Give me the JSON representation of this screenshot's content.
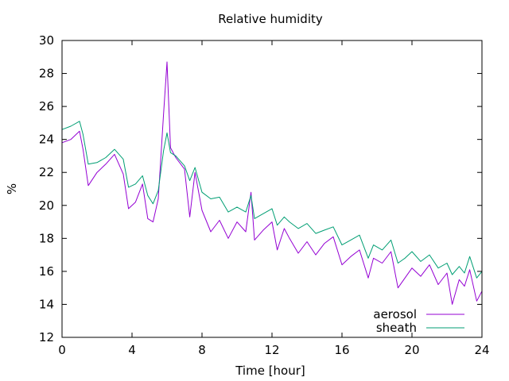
{
  "chart_data": {
    "type": "line",
    "title": "Relative humidity",
    "xlabel": "Time [hour]",
    "ylabel": "%",
    "xlim": [
      0,
      24
    ],
    "ylim": [
      12,
      30
    ],
    "xticks": [
      0,
      4,
      8,
      12,
      16,
      20,
      24
    ],
    "yticks": [
      12,
      14,
      16,
      18,
      20,
      22,
      24,
      26,
      28,
      30
    ],
    "grid": false,
    "legend_position": "bottom-right",
    "series": [
      {
        "name": "aerosol",
        "color": "#9400d3",
        "x": [
          0,
          0.5,
          1.0,
          1.2,
          1.5,
          2.0,
          2.5,
          3.0,
          3.5,
          3.8,
          4.2,
          4.6,
          4.9,
          5.2,
          5.5,
          5.8,
          6.0,
          6.2,
          6.5,
          7.0,
          7.3,
          7.6,
          8.0,
          8.5,
          9.0,
          9.5,
          10.0,
          10.5,
          10.8,
          11.0,
          11.5,
          12.0,
          12.3,
          12.7,
          13.0,
          13.5,
          14.0,
          14.5,
          15.0,
          15.5,
          16.0,
          16.5,
          17.0,
          17.5,
          17.8,
          18.3,
          18.8,
          19.2,
          19.6,
          20.0,
          20.5,
          21.0,
          21.5,
          22.0,
          22.3,
          22.7,
          23.0,
          23.3,
          23.7,
          24.0
        ],
        "y": [
          23.8,
          24.0,
          24.5,
          23.4,
          21.2,
          22.0,
          22.5,
          23.1,
          21.9,
          19.8,
          20.2,
          21.3,
          19.2,
          19.0,
          20.4,
          25.5,
          28.7,
          23.5,
          22.9,
          22.2,
          19.3,
          22.0,
          19.7,
          18.4,
          19.1,
          18.0,
          19.0,
          18.4,
          20.8,
          17.9,
          18.5,
          19.0,
          17.3,
          18.6,
          18.0,
          17.1,
          17.8,
          17.0,
          17.7,
          18.1,
          16.4,
          16.9,
          17.3,
          15.6,
          16.8,
          16.5,
          17.2,
          15.0,
          15.6,
          16.2,
          15.7,
          16.4,
          15.2,
          15.9,
          14.0,
          15.5,
          15.1,
          16.1,
          14.2,
          14.8
        ]
      },
      {
        "name": "sheath",
        "color": "#009e73",
        "x": [
          0,
          0.5,
          1.0,
          1.2,
          1.5,
          2.0,
          2.5,
          3.0,
          3.5,
          3.8,
          4.2,
          4.6,
          4.9,
          5.2,
          5.5,
          5.8,
          6.0,
          6.2,
          6.5,
          7.0,
          7.3,
          7.6,
          8.0,
          8.5,
          9.0,
          9.5,
          10.0,
          10.5,
          10.8,
          11.0,
          11.5,
          12.0,
          12.3,
          12.7,
          13.0,
          13.5,
          14.0,
          14.5,
          15.0,
          15.5,
          16.0,
          16.5,
          17.0,
          17.5,
          17.8,
          18.3,
          18.8,
          19.2,
          19.6,
          20.0,
          20.5,
          21.0,
          21.5,
          22.0,
          22.3,
          22.7,
          23.0,
          23.3,
          23.7,
          24.0
        ],
        "y": [
          24.6,
          24.8,
          25.1,
          24.3,
          22.5,
          22.6,
          22.9,
          23.4,
          22.8,
          21.1,
          21.3,
          21.8,
          20.6,
          20.1,
          20.9,
          23.3,
          24.4,
          23.2,
          23.0,
          22.4,
          21.5,
          22.3,
          20.8,
          20.4,
          20.5,
          19.6,
          19.9,
          19.6,
          20.6,
          19.2,
          19.5,
          19.8,
          18.8,
          19.3,
          19.0,
          18.6,
          18.9,
          18.3,
          18.5,
          18.7,
          17.6,
          17.9,
          18.2,
          16.8,
          17.6,
          17.3,
          17.9,
          16.5,
          16.8,
          17.2,
          16.6,
          17.0,
          16.2,
          16.5,
          15.8,
          16.3,
          15.9,
          16.9,
          15.6,
          16.0
        ]
      }
    ]
  }
}
